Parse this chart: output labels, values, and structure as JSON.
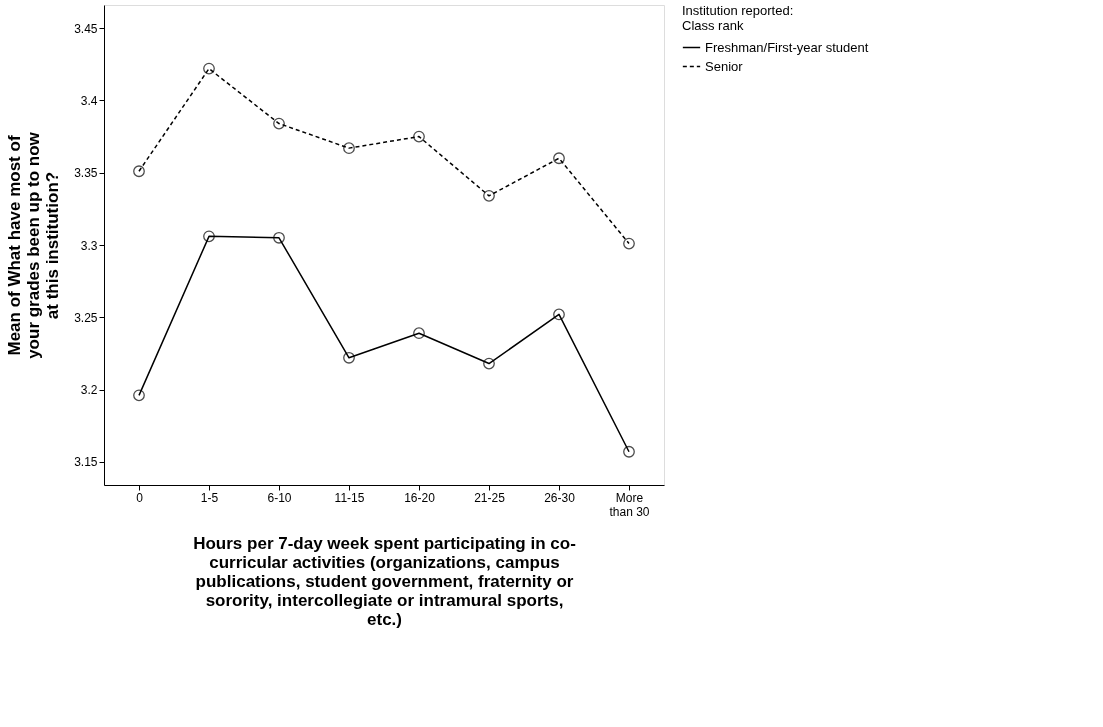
{
  "chart_data": {
    "type": "line",
    "xlabel": "Hours per 7-day week spent participating in co-curricular activities (organizations, campus publications, student government, fraternity or sorority, intercollegiate or intramural sports, etc.)",
    "ylabel": "Mean of What have most of your grades been up to now at this institution?",
    "legend_title": "Institution reported:\nClass rank",
    "categories": [
      "0",
      "1-5",
      "6-10",
      "11-15",
      "16-20",
      "21-25",
      "26-30",
      "More than 30"
    ],
    "series": [
      {
        "name": "Freshman/First-year student",
        "color": "#000000",
        "line_style": "solid",
        "values": [
          3.196,
          3.306,
          3.305,
          3.222,
          3.239,
          3.218,
          3.252,
          3.157
        ]
      },
      {
        "name": "Senior",
        "color": "#000000",
        "line_style": "dashed",
        "values": [
          3.351,
          3.422,
          3.384,
          3.367,
          3.375,
          3.334,
          3.36,
          3.301
        ]
      }
    ],
    "ylim": [
      3.134,
      3.466
    ],
    "yticks": [
      3.15,
      3.2,
      3.25,
      3.3,
      3.35,
      3.4,
      3.45
    ],
    "marker": "circle",
    "grid": false,
    "legend": "top right"
  }
}
